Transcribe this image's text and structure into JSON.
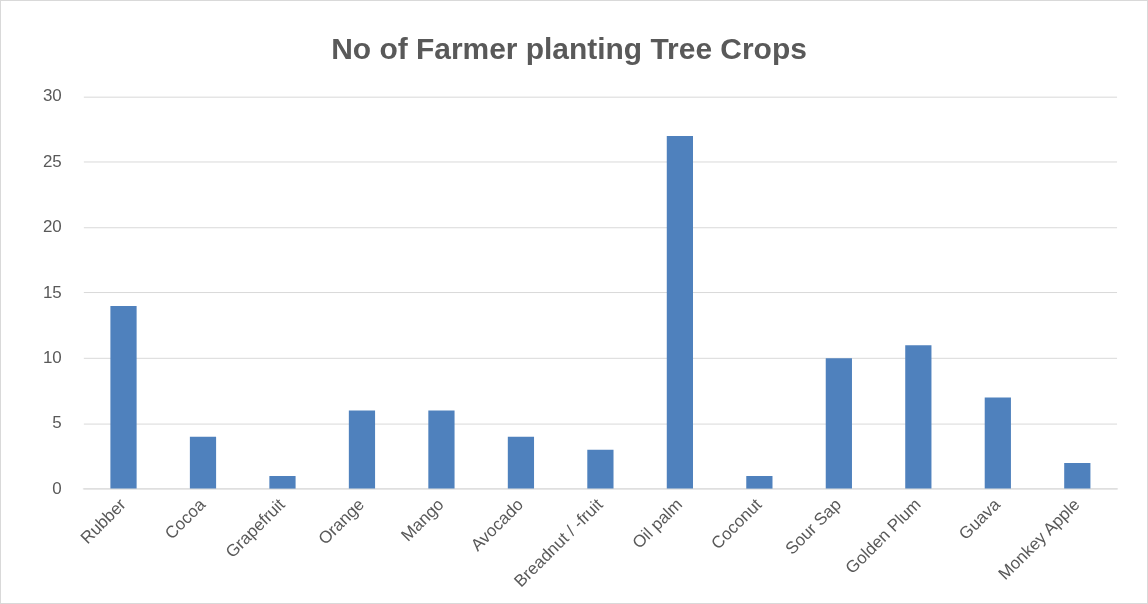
{
  "chart_data": {
    "type": "bar",
    "title": "No of Farmer planting Tree Crops",
    "categories": [
      "Rubber",
      "Cocoa",
      "Grapefruit",
      "Orange",
      "Mango",
      "Avocado",
      "Breadnut / -fruit",
      "Oil palm",
      "Coconut",
      "Sour Sap",
      "Golden Plum",
      "Guava",
      "Monkey Apple"
    ],
    "values": [
      14,
      4,
      1,
      6,
      6,
      4,
      3,
      27,
      1,
      10,
      11,
      7,
      2
    ],
    "color": "#4f81bd",
    "ylim": [
      0,
      30
    ],
    "yticks": [
      0,
      5,
      10,
      15,
      20,
      25,
      30
    ],
    "grid": "y",
    "legend": false
  }
}
